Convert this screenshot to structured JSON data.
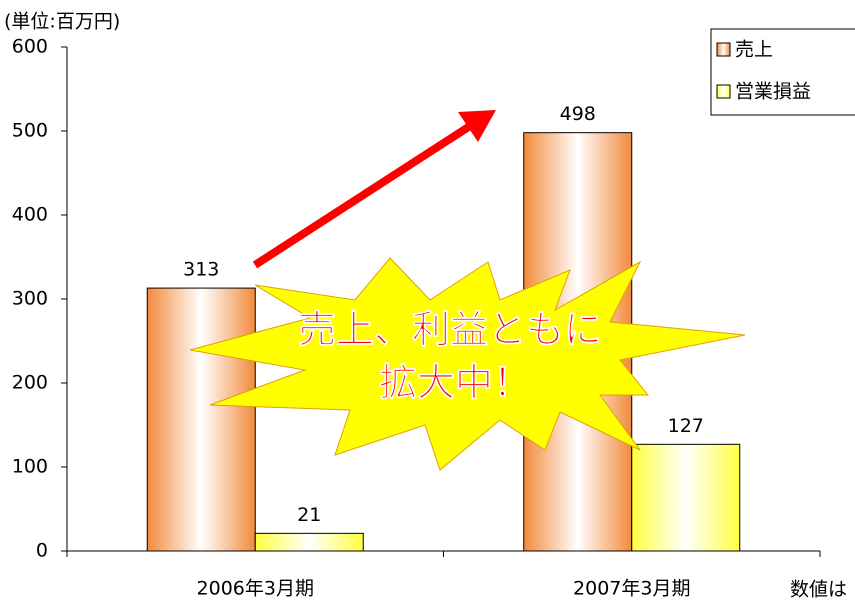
{
  "chart_data": {
    "type": "bar",
    "unit_label": "(単位:百万円)",
    "categories": [
      "2006年3月期",
      "2007年3月期"
    ],
    "series": [
      {
        "name": "売上",
        "color": "#f28a3c",
        "values": [
          313,
          498
        ]
      },
      {
        "name": "営業損益",
        "color": "#ffff40",
        "values": [
          21,
          127
        ]
      }
    ],
    "ylim": [
      0,
      600
    ],
    "yticks": [
      0,
      100,
      200,
      300,
      400,
      500,
      600
    ],
    "legend": "top-right",
    "annotation": [
      "売上、利益ともに",
      "拡大中！"
    ],
    "footnote": "数値は"
  }
}
